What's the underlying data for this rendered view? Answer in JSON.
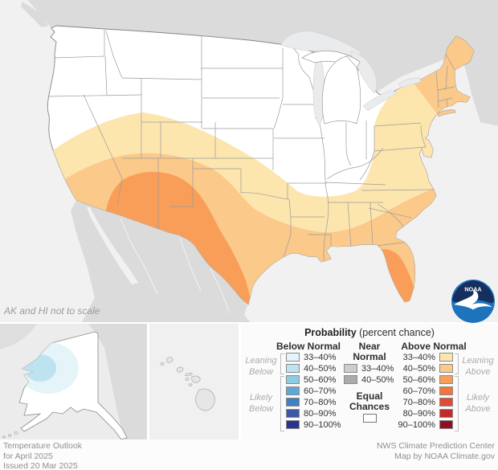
{
  "map": {
    "scale_note": "AK and HI not to scale"
  },
  "palette": {
    "ocean": "#F1F1F1",
    "foreign_land": "#DBDBDB",
    "us_land": "#FFFFFF",
    "lakes": "#E9EBEC",
    "state_border": "#9B9B9B",
    "us_border": "#858585",
    "noaa_dark": "#15305F",
    "noaa_blue": "#1E73BD"
  },
  "legend": {
    "title_bold": "Probability",
    "title_rest": " (percent chance)",
    "columns": {
      "below": {
        "header": "Below Normal",
        "rows": [
          {
            "label": "33–40%",
            "color": "#E4F4F9"
          },
          {
            "label": "40–50%",
            "color": "#BDE3F0"
          },
          {
            "label": "50–60%",
            "color": "#8FCAE3"
          },
          {
            "label": "60–70%",
            "color": "#5FA8D3"
          },
          {
            "label": "70–80%",
            "color": "#4181C0"
          },
          {
            "label": "80–90%",
            "color": "#3C58A7"
          },
          {
            "label": "90–100%",
            "color": "#28348F"
          }
        ]
      },
      "near": {
        "header_line1": "Near",
        "header_line2": "Normal",
        "rows": [
          {
            "label": "33–40%",
            "color": "#CBCDCE"
          },
          {
            "label": "40–50%",
            "color": "#A9ACAE"
          }
        ],
        "equal_line1": "Equal",
        "equal_line2": "Chances",
        "equal_color": "#FFFFFF"
      },
      "above": {
        "header": "Above Normal",
        "rows": [
          {
            "label": "33–40%",
            "color": "#FDE5AE"
          },
          {
            "label": "40–50%",
            "color": "#FBC98A"
          },
          {
            "label": "50–60%",
            "color": "#F89E59"
          },
          {
            "label": "60–70%",
            "color": "#F4743B"
          },
          {
            "label": "70–80%",
            "color": "#E04B35"
          },
          {
            "label": "80–90%",
            "color": "#C02A2B"
          },
          {
            "label": "90–100%",
            "color": "#8F1021"
          }
        ]
      }
    },
    "side_labels": {
      "leaning_below": [
        "Leaning",
        "Below"
      ],
      "likely_below": [
        "Likely",
        "Below"
      ],
      "leaning_above": [
        "Leaning",
        "Above"
      ],
      "likely_above": [
        "Likely",
        "Above"
      ]
    }
  },
  "logo": {
    "label": "NOAA"
  },
  "footer": {
    "left": [
      "Temperature Outlook",
      "for April 2025",
      "Issued 20 Mar 2025"
    ],
    "right": [
      "NWS Climate Prediction Center",
      "Map by NOAA Climate.gov"
    ]
  }
}
